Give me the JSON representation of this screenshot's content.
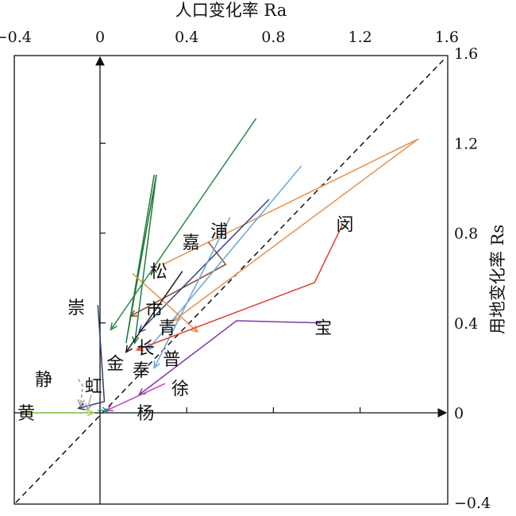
{
  "chart_data": {
    "type": "line",
    "title": "",
    "xlabel": "人口变化率 Ra",
    "ylabel": "用地变化率 Rs",
    "x_axis_position": "top",
    "y_axis_position": "right",
    "xlim": [
      -0.4,
      1.6
    ],
    "ylim": [
      -0.4,
      1.6
    ],
    "x_ticks": [
      "−0.4",
      "0",
      "0.4",
      "0.8",
      "1.2",
      "1.6"
    ],
    "y_ticks": [
      "1.6",
      "1.2",
      "0.8",
      "0.4",
      "0",
      "−0.4"
    ],
    "x_tick_values": [
      -0.4,
      0,
      0.4,
      0.8,
      1.2,
      1.6
    ],
    "y_tick_values": [
      1.6,
      1.2,
      0.8,
      0.4,
      0,
      -0.4
    ],
    "reference_line": {
      "style": "dashed",
      "slope": 1
    },
    "arrowheads": true,
    "grid": false,
    "series": [
      {
        "label": "浦",
        "color": "#e8904a",
        "label_pos": [
          0.55,
          0.81
        ],
        "points": [
          [
            0.29,
            0.66
          ],
          [
            1.47,
            1.22
          ],
          [
            0.34,
            0.41
          ]
        ]
      },
      {
        "label": "嘉",
        "color": "#8b4a2a",
        "label_pos": [
          0.42,
          0.76
        ],
        "points": [
          [
            0.5,
            0.76
          ],
          [
            0.58,
            0.66
          ],
          [
            0.14,
            0.43
          ]
        ]
      },
      {
        "label": "松",
        "color": "#1f7a3a",
        "label_pos": [
          0.27,
          0.63
        ],
        "points": [
          [
            0.25,
            1.06
          ],
          [
            0.12,
            0.31
          ],
          [
            0.26,
            1.06
          ],
          [
            0.16,
            0.31
          ]
        ]
      },
      {
        "label": "崇",
        "color": "#2a3a78",
        "label_pos": [
          -0.11,
          0.47
        ],
        "points": [
          [
            -0.01,
            0.48
          ],
          [
            0.02,
            0.05
          ],
          [
            -0.1,
            0.02
          ]
        ]
      },
      {
        "label": "市",
        "color": "#33448a",
        "label_pos": [
          0.25,
          0.46
        ],
        "points": [
          [
            0.78,
            0.95
          ],
          [
            0.18,
            0.36
          ]
        ]
      },
      {
        "label": "青",
        "color": "#e8904a",
        "label_pos": [
          0.31,
          0.38
        ],
        "points": [
          [
            0.15,
            0.62
          ],
          [
            0.45,
            0.36
          ]
        ]
      },
      {
        "label": "长",
        "color": "#1e1e1e",
        "label_pos": [
          0.21,
          0.29
        ],
        "points": [
          [
            0.38,
            0.63
          ],
          [
            0.12,
            0.27
          ]
        ]
      },
      {
        "label": "金",
        "color": "#2a8a44",
        "label_pos": [
          0.07,
          0.22
        ],
        "points": [
          [
            0.72,
            1.31
          ],
          [
            0.05,
            0.37
          ]
        ]
      },
      {
        "label": "普",
        "color": "#6aa5d8",
        "label_pos": [
          0.33,
          0.24
        ],
        "points": [
          [
            0.93,
            1.1
          ],
          [
            0.22,
            0.28
          ]
        ]
      },
      {
        "label": "奉",
        "color": "#6aa5d8",
        "label_pos": [
          0.19,
          0.19
        ],
        "points": [
          [
            0.6,
            0.87
          ],
          [
            0.25,
            0.2
          ]
        ]
      },
      {
        "label": "闵",
        "color": "#e04030",
        "label_pos": [
          1.13,
          0.84
        ],
        "points": [
          [
            1.12,
            0.84
          ],
          [
            0.99,
            0.58
          ],
          [
            0.17,
            0.28
          ]
        ]
      },
      {
        "label": "宝",
        "color": "#7e3aa0",
        "label_pos": [
          1.03,
          0.38
        ],
        "points": [
          [
            1.02,
            0.4
          ],
          [
            0.63,
            0.41
          ],
          [
            0.18,
            0.08
          ]
        ]
      },
      {
        "label": "徐",
        "color": "#c440c0",
        "label_pos": [
          0.37,
          0.11
        ],
        "points": [
          [
            0.3,
            0.13
          ],
          [
            0.03,
            0.01
          ]
        ]
      },
      {
        "label": "杨",
        "color": "#2a8a7a",
        "label_pos": [
          0.21,
          0.0
        ],
        "points": [
          [
            -0.01,
            0.01
          ],
          [
            0.04,
            0.01
          ]
        ]
      },
      {
        "label": "静",
        "color": "#999999",
        "label_pos": [
          -0.26,
          0.15
        ],
        "points": [
          [
            -0.1,
            0.15
          ],
          [
            -0.08,
            0.12
          ],
          [
            -0.09,
            0.03
          ]
        ]
      },
      {
        "label": "虹",
        "color": "#aaaaaa",
        "label_pos": [
          -0.03,
          0.12
        ],
        "points": [
          [
            -0.04,
            0.08
          ],
          [
            -0.06,
            0.01
          ]
        ]
      },
      {
        "label": "黄",
        "color": "#9acb4c",
        "label_pos": [
          -0.34,
          0.0
        ],
        "points": [
          [
            -0.35,
            0.0
          ],
          [
            -0.03,
            0.0
          ]
        ]
      }
    ]
  }
}
